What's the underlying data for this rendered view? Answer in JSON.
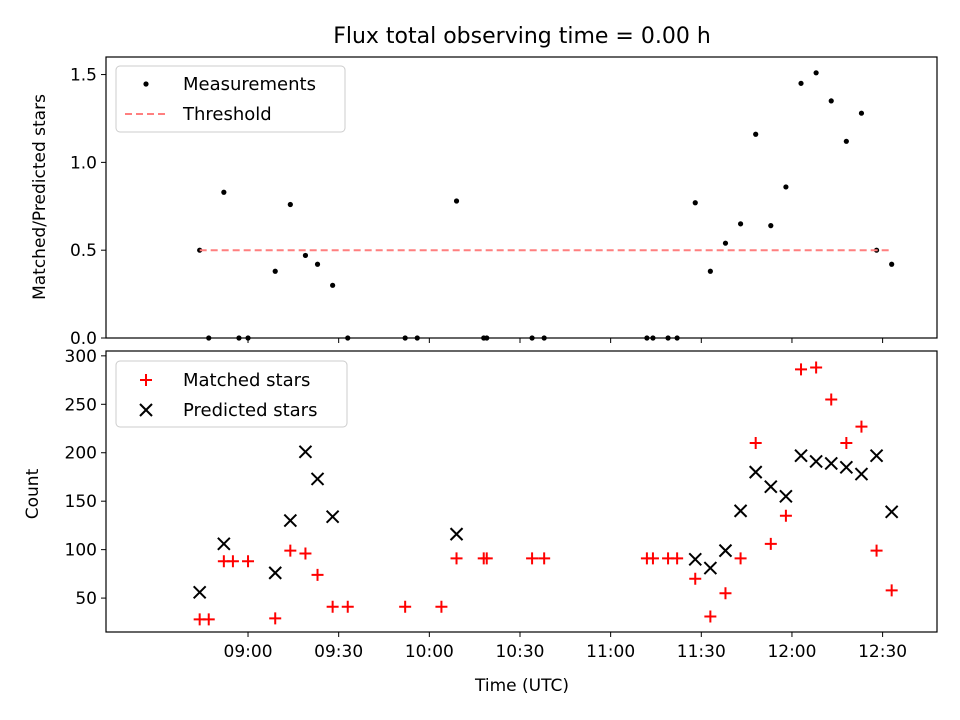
{
  "chart_data": {
    "title": "Flux total observing time = 0.00 h",
    "x_label": "Time (UTC)",
    "x_ticks": [
      "09:00",
      "09:30",
      "10:00",
      "10:30",
      "11:00",
      "11:30",
      "12:00",
      "12:30"
    ],
    "x_tick_minutes": [
      540,
      570,
      600,
      630,
      660,
      690,
      720,
      750
    ],
    "x_range_minutes": [
      493,
      768
    ],
    "panels": [
      {
        "type": "scatter",
        "y_label": "Matched/Predicted stars",
        "ylim": [
          0,
          1.6
        ],
        "y_ticks": [
          "0.0",
          "0.5",
          "1.0",
          "1.5"
        ],
        "y_tick_values": [
          0,
          0.5,
          1.0,
          1.5
        ],
        "legend_position": "upper-left",
        "series": [
          {
            "name": "Measurements",
            "marker": "dot",
            "color": "#000000",
            "x": [
              "08:44",
              "08:47",
              "08:52",
              "08:57",
              "09:00",
              "09:09",
              "09:14",
              "09:19",
              "09:23",
              "09:28",
              "09:33",
              "09:52",
              "09:56",
              "10:09",
              "10:18",
              "10:19",
              "10:34",
              "10:38",
              "11:12",
              "11:14",
              "11:19",
              "11:22",
              "11:28",
              "11:33",
              "11:38",
              "11:43",
              "11:48",
              "11:53",
              "11:58",
              "12:03",
              "12:08",
              "12:13",
              "12:18",
              "12:23",
              "12:28",
              "12:33"
            ],
            "y": [
              0.5,
              0.0,
              0.83,
              0.0,
              0.0,
              0.38,
              0.76,
              0.47,
              0.42,
              0.3,
              0.0,
              0.0,
              0.0,
              0.78,
              0.0,
              0.0,
              0.0,
              0.0,
              0.0,
              0.0,
              0.0,
              0.0,
              0.77,
              0.38,
              0.54,
              0.65,
              1.16,
              0.64,
              0.86,
              1.45,
              1.51,
              1.35,
              1.12,
              1.28,
              0.5,
              0.42
            ]
          },
          {
            "name": "Threshold",
            "line_style": "dashed",
            "color": "#ff7f7f",
            "x": [
              "08:44",
              "12:33"
            ],
            "y": [
              0.5,
              0.5
            ]
          }
        ]
      },
      {
        "type": "scatter",
        "y_label": "Count",
        "ylim": [
          15,
          305
        ],
        "y_ticks": [
          "50",
          "100",
          "150",
          "200",
          "250",
          "300"
        ],
        "y_tick_values": [
          50,
          100,
          150,
          200,
          250,
          300
        ],
        "legend_position": "upper-left",
        "series": [
          {
            "name": "Matched stars",
            "marker": "plus",
            "color": "#ff0000",
            "x": [
              "08:44",
              "08:47",
              "08:52",
              "08:55",
              "09:00",
              "09:09",
              "09:14",
              "09:19",
              "09:23",
              "09:28",
              "09:33",
              "09:52",
              "10:04",
              "10:09",
              "10:18",
              "10:19",
              "10:34",
              "10:38",
              "11:12",
              "11:14",
              "11:19",
              "11:22",
              "11:28",
              "11:33",
              "11:38",
              "11:43",
              "11:48",
              "11:53",
              "11:58",
              "12:03",
              "12:08",
              "12:13",
              "12:18",
              "12:23",
              "12:28",
              "12:33"
            ],
            "y": [
              28,
              28,
              88,
              88,
              88,
              29,
              99,
              96,
              74,
              41,
              41,
              41,
              41,
              91,
              91,
              91,
              91,
              91,
              91,
              91,
              91,
              91,
              70,
              31,
              55,
              91,
              210,
              106,
              135,
              286,
              288,
              255,
              210,
              227,
              99,
              58
            ]
          },
          {
            "name": "Predicted stars",
            "marker": "x",
            "color": "#000000",
            "x": [
              "08:44",
              "08:52",
              "09:09",
              "09:14",
              "09:19",
              "09:23",
              "09:28",
              "10:09",
              "11:28",
              "11:33",
              "11:38",
              "11:43",
              "11:48",
              "11:53",
              "11:58",
              "12:03",
              "12:08",
              "12:13",
              "12:18",
              "12:23",
              "12:28",
              "12:33"
            ],
            "y": [
              56,
              106,
              76,
              130,
              201,
              173,
              134,
              116,
              90,
              81,
              99,
              140,
              180,
              165,
              155,
              197,
              191,
              189,
              185,
              178,
              197,
              139
            ]
          }
        ]
      }
    ]
  }
}
